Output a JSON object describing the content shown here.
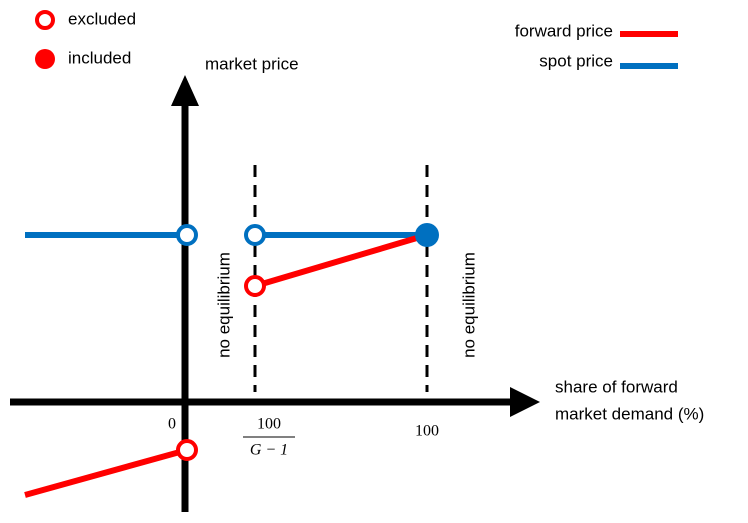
{
  "legend": {
    "excluded": "excluded",
    "included": "included",
    "forward": "forward price",
    "spot": "spot price"
  },
  "axes": {
    "y_label": "market price",
    "x_label_line1": "share of forward",
    "x_label_line2": "market demand (%)"
  },
  "annotations": [
    "no equilibrium",
    "no equilibrium"
  ],
  "ticks": {
    "zero": "0",
    "frac_num": "100",
    "frac_den": "G − 1",
    "hundred": "100"
  }
}
